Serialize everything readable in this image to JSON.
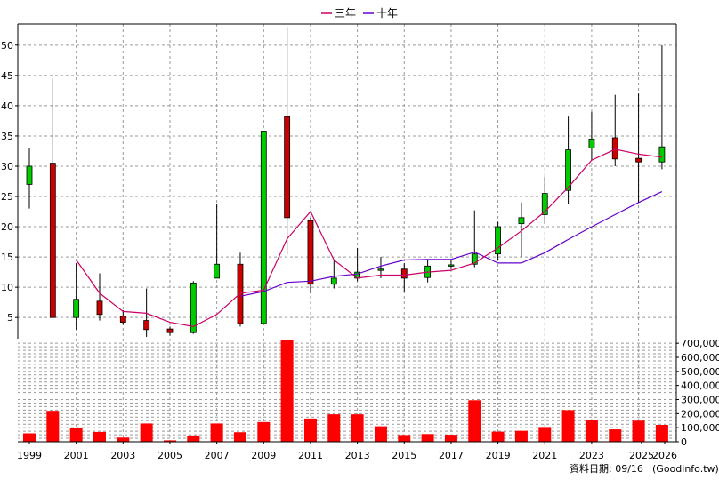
{
  "legend": {
    "ma3_label": "三年",
    "ma10_label": "十年",
    "ma3_color": "#cc0066",
    "ma10_color": "#6600cc"
  },
  "footer": {
    "date_label": "資料日期: 09/16",
    "source": "(Goodinfo.tw)"
  },
  "chart_data": {
    "type": "candlestick",
    "x_tick_labels": [
      "1999",
      "2001",
      "2003",
      "2005",
      "2007",
      "2009",
      "2011",
      "2013",
      "2015",
      "2017",
      "2019",
      "2021",
      "2023",
      "2025",
      "2026"
    ],
    "price_axis": {
      "ylim": [
        1.5,
        53.5
      ],
      "ticks": [
        5,
        10,
        15,
        20,
        25,
        30,
        35,
        40,
        45,
        50
      ],
      "side": "left"
    },
    "volume_axis": {
      "ylim": [
        0,
        720000
      ],
      "ticks": [
        0,
        100000,
        200000,
        300000,
        400000,
        500000,
        600000,
        700000
      ],
      "tick_labels": [
        "0",
        "100,000",
        "200,000",
        "300,000",
        "400,000",
        "500,000",
        "600,000",
        "700,000"
      ],
      "side": "right"
    },
    "up_color": "#00cc00",
    "down_color": "#cc0000",
    "volume_color": "#ff0000",
    "grid": true,
    "legend_position": "top-center",
    "candles": [
      {
        "year": 1999,
        "open": 27,
        "close": 30,
        "high": 33,
        "low": 23
      },
      {
        "year": 2000,
        "open": 30.5,
        "close": 5,
        "high": 44.5,
        "low": 5
      },
      {
        "year": 2001,
        "open": 5,
        "close": 8,
        "high": 14,
        "low": 3
      },
      {
        "year": 2002,
        "open": 7.7,
        "close": 5.5,
        "high": 12.3,
        "low": 4.5
      },
      {
        "year": 2003,
        "open": 5.2,
        "close": 4.2,
        "high": 6.2,
        "low": 3.8
      },
      {
        "year": 2004,
        "open": 4.5,
        "close": 3,
        "high": 9.8,
        "low": 1.8
      },
      {
        "year": 2005,
        "open": 3.1,
        "close": 2.5,
        "high": 3.5,
        "low": 2
      },
      {
        "year": 2006,
        "open": 2.5,
        "close": 10.7,
        "high": 11,
        "low": 2.3
      },
      {
        "year": 2007,
        "open": 11.5,
        "close": 13.8,
        "high": 23.7,
        "low": 11.5
      },
      {
        "year": 2008,
        "open": 13.8,
        "close": 4,
        "high": 15.7,
        "low": 3.5
      },
      {
        "year": 2009,
        "open": 4,
        "close": 35.8,
        "high": 35.8,
        "low": 4
      },
      {
        "year": 2010,
        "open": 38.2,
        "close": 21.5,
        "high": 53,
        "low": 15.5
      },
      {
        "year": 2011,
        "open": 21,
        "close": 10.5,
        "high": 21.5,
        "low": 9
      },
      {
        "year": 2012,
        "open": 10.5,
        "close": 11.5,
        "high": 14.5,
        "low": 9.8
      },
      {
        "year": 2013,
        "open": 11.5,
        "close": 12.5,
        "high": 16.5,
        "low": 11
      },
      {
        "year": 2014,
        "open": 12.8,
        "close": 13,
        "high": 15,
        "low": 11.5
      },
      {
        "year": 2015,
        "open": 13,
        "close": 11.5,
        "high": 14,
        "low": 9.3
      },
      {
        "year": 2016,
        "open": 11.6,
        "close": 13.5,
        "high": 14.6,
        "low": 10.8
      },
      {
        "year": 2017,
        "open": 13.5,
        "close": 13.7,
        "high": 14.6,
        "low": 13
      },
      {
        "year": 2018,
        "open": 13.8,
        "close": 15.5,
        "high": 22.7,
        "low": 13.3
      },
      {
        "year": 2019,
        "open": 15.5,
        "close": 20,
        "high": 20.8,
        "low": 14.5
      },
      {
        "year": 2020,
        "open": 20.5,
        "close": 21.5,
        "high": 24,
        "low": 15
      },
      {
        "year": 2021,
        "open": 22,
        "close": 25.5,
        "high": 28.3,
        "low": 20.5
      },
      {
        "year": 2022,
        "open": 26,
        "close": 32.7,
        "high": 38.2,
        "low": 23.7
      },
      {
        "year": 2023,
        "open": 33,
        "close": 34.5,
        "high": 39,
        "low": 31
      },
      {
        "year": 2024,
        "open": 34.7,
        "close": 31.2,
        "high": 41.8,
        "low": 30
      },
      {
        "year": 2025,
        "open": 31.3,
        "close": 30.7,
        "high": 42,
        "low": 24
      },
      {
        "year": 2026,
        "open": 30.7,
        "close": 33.2,
        "high": 50,
        "low": 29.5
      }
    ],
    "volume": [
      {
        "year": 1999,
        "value": 60000
      },
      {
        "year": 2000,
        "value": 220000
      },
      {
        "year": 2001,
        "value": 95000
      },
      {
        "year": 2002,
        "value": 70000
      },
      {
        "year": 2003,
        "value": 30000
      },
      {
        "year": 2004,
        "value": 130000
      },
      {
        "year": 2005,
        "value": 10000
      },
      {
        "year": 2006,
        "value": 45000
      },
      {
        "year": 2007,
        "value": 130000
      },
      {
        "year": 2008,
        "value": 68000
      },
      {
        "year": 2009,
        "value": 140000
      },
      {
        "year": 2010,
        "value": 720000
      },
      {
        "year": 2011,
        "value": 165000
      },
      {
        "year": 2012,
        "value": 195000
      },
      {
        "year": 2013,
        "value": 195000
      },
      {
        "year": 2014,
        "value": 110000
      },
      {
        "year": 2015,
        "value": 48000
      },
      {
        "year": 2016,
        "value": 55000
      },
      {
        "year": 2017,
        "value": 50000
      },
      {
        "year": 2018,
        "value": 295000
      },
      {
        "year": 2019,
        "value": 72000
      },
      {
        "year": 2020,
        "value": 78000
      },
      {
        "year": 2021,
        "value": 105000
      },
      {
        "year": 2022,
        "value": 225000
      },
      {
        "year": 2023,
        "value": 152000
      },
      {
        "year": 2024,
        "value": 88000
      },
      {
        "year": 2025,
        "value": 150000
      },
      {
        "year": 2026,
        "value": 120000
      }
    ],
    "ma3": [
      {
        "year": 2001,
        "value": 14.5
      },
      {
        "year": 2002,
        "value": 9
      },
      {
        "year": 2003,
        "value": 6
      },
      {
        "year": 2004,
        "value": 5.7
      },
      {
        "year": 2005,
        "value": 4.2
      },
      {
        "year": 2006,
        "value": 3.5
      },
      {
        "year": 2007,
        "value": 5.5
      },
      {
        "year": 2008,
        "value": 9
      },
      {
        "year": 2009,
        "value": 9.5
      },
      {
        "year": 2010,
        "value": 18
      },
      {
        "year": 2011,
        "value": 22.5
      },
      {
        "year": 2012,
        "value": 14.5
      },
      {
        "year": 2013,
        "value": 11.5
      },
      {
        "year": 2014,
        "value": 12
      },
      {
        "year": 2015,
        "value": 12
      },
      {
        "year": 2016,
        "value": 12.5
      },
      {
        "year": 2017,
        "value": 12.8
      },
      {
        "year": 2018,
        "value": 14
      },
      {
        "year": 2019,
        "value": 16.5
      },
      {
        "year": 2020,
        "value": 19.3
      },
      {
        "year": 2021,
        "value": 22.5
      },
      {
        "year": 2022,
        "value": 26.5
      },
      {
        "year": 2023,
        "value": 31
      },
      {
        "year": 2024,
        "value": 32.8
      },
      {
        "year": 2025,
        "value": 32
      },
      {
        "year": 2026,
        "value": 31.5
      }
    ],
    "ma10": [
      {
        "year": 2008,
        "value": 8.5
      },
      {
        "year": 2009,
        "value": 9.3
      },
      {
        "year": 2010,
        "value": 10.8
      },
      {
        "year": 2011,
        "value": 11
      },
      {
        "year": 2012,
        "value": 11.8
      },
      {
        "year": 2013,
        "value": 12.2
      },
      {
        "year": 2014,
        "value": 13.5
      },
      {
        "year": 2015,
        "value": 14.5
      },
      {
        "year": 2016,
        "value": 14.6
      },
      {
        "year": 2017,
        "value": 14.6
      },
      {
        "year": 2018,
        "value": 15.8
      },
      {
        "year": 2019,
        "value": 14
      },
      {
        "year": 2020,
        "value": 14
      },
      {
        "year": 2021,
        "value": 15.7
      },
      {
        "year": 2022,
        "value": 17.9
      },
      {
        "year": 2023,
        "value": 20
      },
      {
        "year": 2024,
        "value": 22
      },
      {
        "year": 2025,
        "value": 24
      },
      {
        "year": 2026,
        "value": 25.8
      }
    ]
  }
}
